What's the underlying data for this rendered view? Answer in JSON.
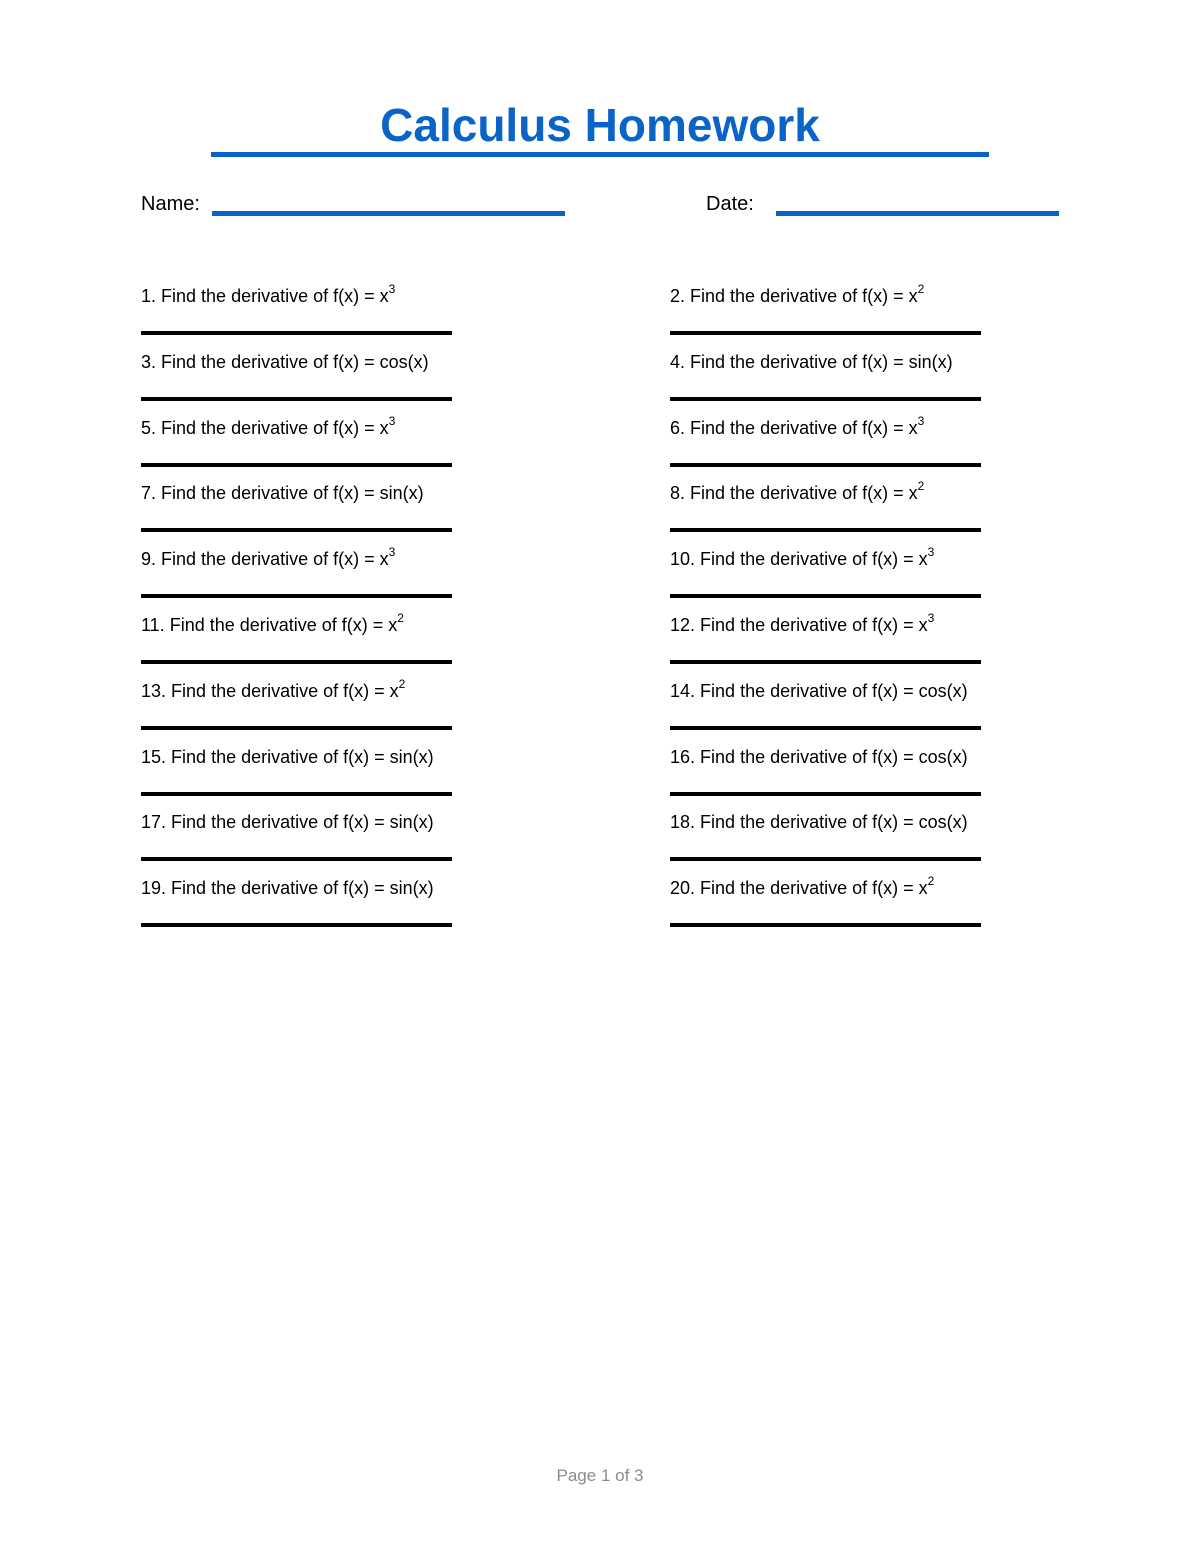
{
  "title": "Calculus Homework",
  "header": {
    "name_label": "Name:",
    "date_label": "Date:"
  },
  "colors": {
    "accent": "#0a64c8",
    "footer": "#8c8c8c"
  },
  "questions": [
    {
      "num": "1.",
      "text": "Find the derivative of f(x) = ",
      "base": "x",
      "sup": "3"
    },
    {
      "num": "2.",
      "text": "Find the derivative of f(x) = ",
      "base": "x",
      "sup": "2"
    },
    {
      "num": "3.",
      "text": "Find the derivative of f(x) = ",
      "base": "cos(x)",
      "sup": ""
    },
    {
      "num": "4.",
      "text": "Find the derivative of f(x) = ",
      "base": "sin(x)",
      "sup": ""
    },
    {
      "num": "5.",
      "text": "Find the derivative of f(x) = ",
      "base": "x",
      "sup": "3"
    },
    {
      "num": "6.",
      "text": "Find the derivative of f(x) = ",
      "base": "x",
      "sup": "3"
    },
    {
      "num": "7.",
      "text": "Find the derivative of f(x) = ",
      "base": "sin(x)",
      "sup": ""
    },
    {
      "num": "8.",
      "text": "Find the derivative of f(x) = ",
      "base": "x",
      "sup": "2"
    },
    {
      "num": "9.",
      "text": "Find the derivative of f(x) = ",
      "base": "x",
      "sup": "3"
    },
    {
      "num": "10.",
      "text": "Find the derivative of f(x) = ",
      "base": "x",
      "sup": "3"
    },
    {
      "num": "11.",
      "text": "Find the derivative of f(x) = ",
      "base": "x",
      "sup": "2"
    },
    {
      "num": "12.",
      "text": "Find the derivative of f(x) = ",
      "base": "x",
      "sup": "3"
    },
    {
      "num": "13.",
      "text": "Find the derivative of f(x) = ",
      "base": "x",
      "sup": "2"
    },
    {
      "num": "14.",
      "text": "Find the derivative of f(x) = ",
      "base": "cos(x)",
      "sup": ""
    },
    {
      "num": "15.",
      "text": "Find the derivative of f(x) = ",
      "base": "sin(x)",
      "sup": ""
    },
    {
      "num": "16.",
      "text": "Find the derivative of f(x) = ",
      "base": "cos(x)",
      "sup": ""
    },
    {
      "num": "17.",
      "text": "Find the derivative of f(x) = ",
      "base": "sin(x)",
      "sup": ""
    },
    {
      "num": "18.",
      "text": "Find the derivative of f(x) = ",
      "base": "cos(x)",
      "sup": ""
    },
    {
      "num": "19.",
      "text": "Find the derivative of f(x) = ",
      "base": "sin(x)",
      "sup": ""
    },
    {
      "num": "20.",
      "text": "Find the derivative of f(x) = ",
      "base": "x",
      "sup": "2"
    }
  ],
  "footer": "Page 1 of 3"
}
